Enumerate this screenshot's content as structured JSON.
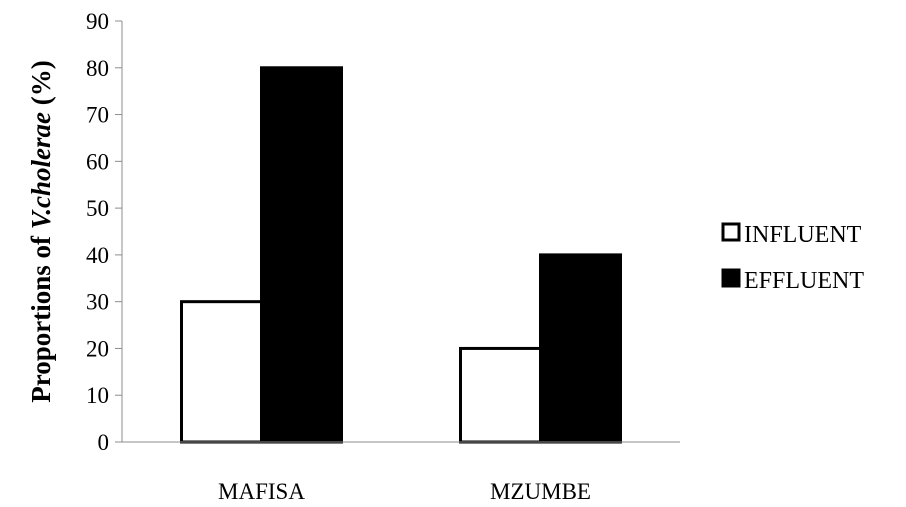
{
  "chart_data": {
    "type": "bar",
    "categories": [
      "MAFISA",
      "MZUMBE"
    ],
    "series": [
      {
        "name": "INFLUENT",
        "values": [
          30,
          20
        ],
        "color": "#ffffff"
      },
      {
        "name": "EFFLUENT",
        "values": [
          80,
          40
        ],
        "color": "#000000"
      }
    ],
    "ylabel_prefix": "Proportions of ",
    "ylabel_species": "V.cholerae",
    "ylabel_suffix": " (%)",
    "xlabel": "",
    "ylim": [
      0,
      90
    ],
    "yticks": [
      0,
      10,
      20,
      30,
      40,
      50,
      60,
      70,
      80,
      90
    ],
    "grid": false,
    "legend_position": "right"
  }
}
